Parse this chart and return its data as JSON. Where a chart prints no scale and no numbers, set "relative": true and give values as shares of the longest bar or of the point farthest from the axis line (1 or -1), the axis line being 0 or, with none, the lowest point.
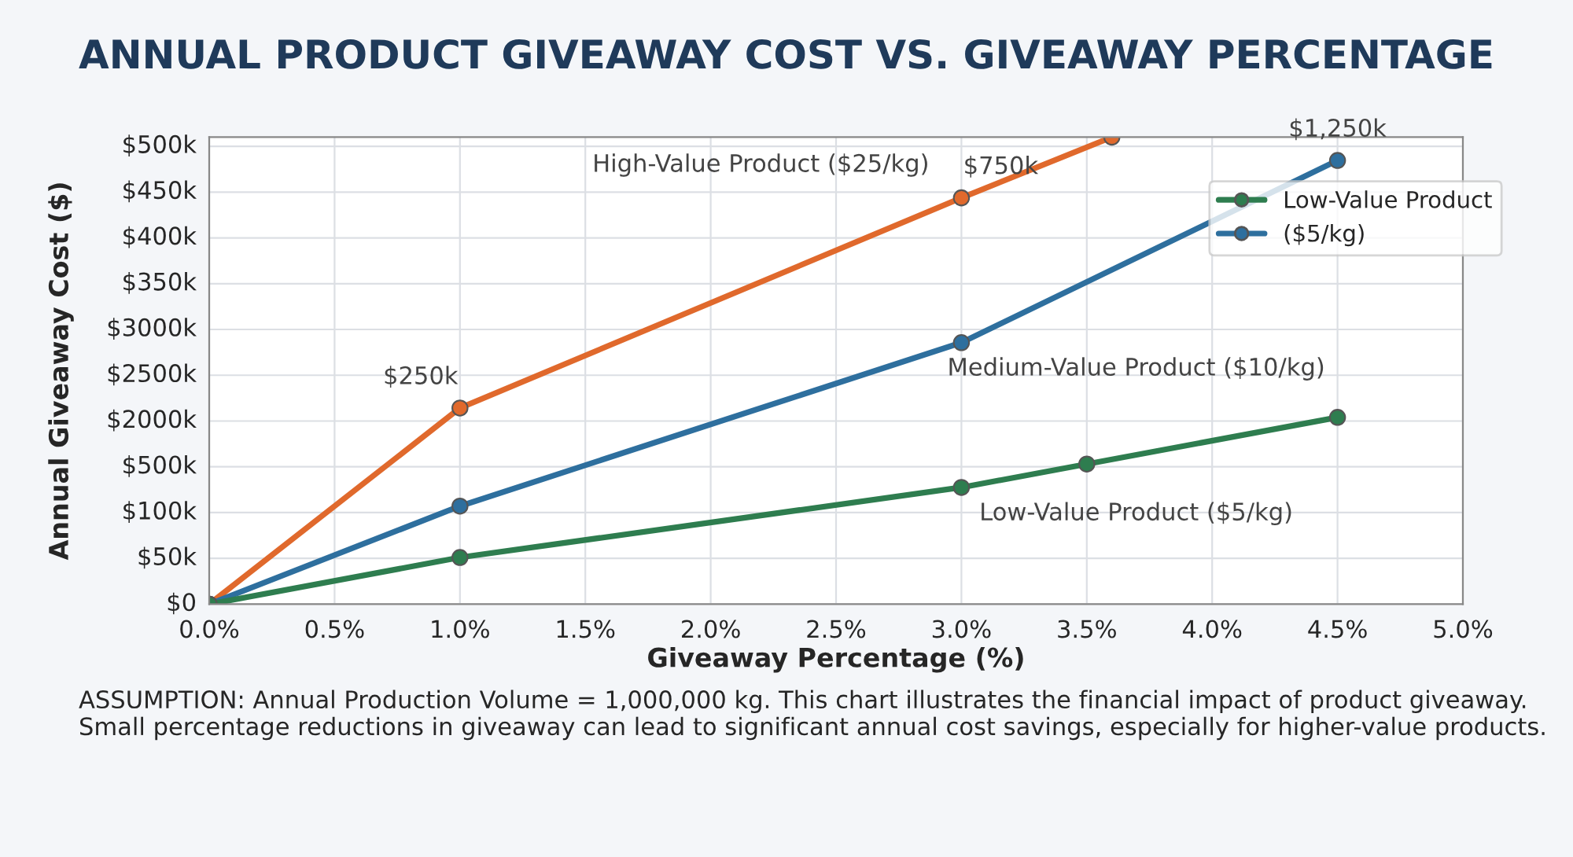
{
  "chart_data": {
    "type": "line",
    "title": "ANNUAL PRODUCT GIVEAWAY COST VS. GIVEAWAY PERCENTAGE",
    "xlabel": "Giveaway Percentage (%)",
    "ylabel": "Annual Giveaway Cost ($)",
    "relative": true,
    "xlim": [
      0,
      5
    ],
    "xticks": [
      {
        "value": 0,
        "label": "0.0%"
      },
      {
        "value": 0.5,
        "label": "0.5%"
      },
      {
        "value": 1,
        "label": "1.0%"
      },
      {
        "value": 1.5,
        "label": "1.5%"
      },
      {
        "value": 2,
        "label": "2.0%"
      },
      {
        "value": 2.5,
        "label": "2.5%"
      },
      {
        "value": 3,
        "label": "3.0%"
      },
      {
        "value": 3.5,
        "label": "3.5%"
      },
      {
        "value": 4,
        "label": "4.0%"
      },
      {
        "value": 4.5,
        "label": "4.5%"
      },
      {
        "value": 5,
        "label": "5.0%"
      }
    ],
    "grid": true,
    "legend": "top right",
    "marker": "circle",
    "line_style": "solid",
    "series": [
      {
        "color": "#e0692c",
        "x": [
          0,
          1,
          3,
          3.6
        ],
        "values": [
          0,
          0.42,
          0.87,
          1
        ]
      },
      {
        "name": "($5/kg)",
        "color": "#2e6f9e",
        "x": [
          0,
          1,
          3,
          4.5
        ],
        "values": [
          0,
          0.21,
          0.56,
          0.95
        ]
      },
      {
        "name": "Low-Value Product",
        "color": "#2e7d4f",
        "x": [
          0,
          1,
          3,
          3.5,
          4.5
        ],
        "values": [
          0,
          0.1,
          0.25,
          0.3,
          0.4
        ]
      }
    ],
    "annotations": [
      "$0",
      "$50k",
      "$100k",
      "$500k",
      "$2000k",
      "$2500k",
      "$3000k",
      "$350k",
      "$400k",
      "$450k",
      "$500k",
      "High-Value Product ($25/kg)",
      {
        "text": "$750k",
        "x": 3,
        "y": 0.87
      },
      {
        "text": "$250k",
        "x": 1,
        "y": 0.42
      },
      {
        "text": "$1,250k",
        "x": 4.5,
        "y": 0.95
      },
      {
        "text": "Medium-Value Product ($10/kg)",
        "x": 3,
        "y": 0.56
      },
      {
        "text": "Low-Value Product ($5/kg)",
        "x": 3,
        "y": 0.25
      },
      "ASSUMPTION: Annual Production Volume = 1,000,000 kg. This chart illustrates the financial impact of product giveaway. Small percentage reductions in giveaway can lead to significant annual cost savings, especially for higher-value products."
    ]
  }
}
